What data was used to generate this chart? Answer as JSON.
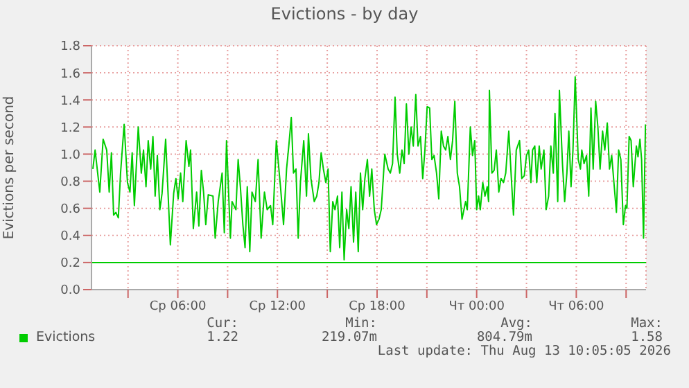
{
  "chart_data": {
    "type": "line",
    "title": "Evictions - by day",
    "ylabel": "Evictions per second",
    "xlim": [
      "2026-08-12T00:48",
      "2026-08-13T10:12"
    ],
    "xticks": [
      {
        "value": "2026-08-12T03:00",
        "label": null
      },
      {
        "value": "2026-08-12T06:00",
        "label": "Ср 06:00"
      },
      {
        "value": "2026-08-12T09:00",
        "label": null
      },
      {
        "value": "2026-08-12T12:00",
        "label": "Ср 12:00"
      },
      {
        "value": "2026-08-12T15:00",
        "label": null
      },
      {
        "value": "2026-08-12T18:00",
        "label": "Ср 18:00"
      },
      {
        "value": "2026-08-12T21:00",
        "label": null
      },
      {
        "value": "2026-08-13T00:00",
        "label": "Чт 00:00"
      },
      {
        "value": "2026-08-13T03:00",
        "label": null
      },
      {
        "value": "2026-08-13T06:00",
        "label": "Чт 06:00"
      },
      {
        "value": "2026-08-13T09:00",
        "label": null
      }
    ],
    "ylim": [
      0,
      1.8
    ],
    "yticks": [
      {
        "value": 0,
        "label": "0.0"
      },
      {
        "value": 0.2,
        "label": "0.2"
      },
      {
        "value": 0.4,
        "label": "0.4"
      },
      {
        "value": 0.6,
        "label": "0.6"
      },
      {
        "value": 0.8,
        "label": "0.8"
      },
      {
        "value": 1,
        "label": "1.0"
      },
      {
        "value": 1.2,
        "label": "1.2"
      },
      {
        "value": 1.4,
        "label": "1.4"
      },
      {
        "value": 1.6,
        "label": "1.6"
      },
      {
        "value": 1.8,
        "label": "1.8"
      }
    ],
    "grid": true,
    "legend": "bottom",
    "marker": "none",
    "line_style": "solid",
    "ref_lines": [
      {
        "axis": "y",
        "value": 0.2,
        "color": "#00cc00"
      }
    ],
    "annotations": [
      "Cur:",
      "Min:",
      "Avg:",
      "Max:",
      "1.22",
      "219.07m",
      "804.79m",
      "1.58",
      "Last update: Thu Aug 13 10:05:05 2026"
    ],
    "series": [
      {
        "name": "Evictions",
        "color": "#00cc00",
        "x": [
          "2026-08-12T00:53",
          "2026-08-12T01:01",
          "2026-08-12T01:18",
          "2026-08-12T01:30",
          "2026-08-12T01:43",
          "2026-08-12T01:52",
          "2026-08-12T02:00",
          "2026-08-12T02:08",
          "2026-08-12T02:16",
          "2026-08-12T02:25",
          "2026-08-12T02:33",
          "2026-08-12T02:46",
          "2026-08-12T02:58",
          "2026-08-12T03:07",
          "2026-08-12T03:15",
          "2026-08-12T03:23",
          "2026-08-12T03:37",
          "2026-08-12T03:48",
          "2026-08-12T03:56",
          "2026-08-12T04:05",
          "2026-08-12T04:13",
          "2026-08-12T04:22",
          "2026-08-12T04:30",
          "2026-08-12T04:38",
          "2026-08-12T04:46",
          "2026-08-12T04:55",
          "2026-08-12T05:03",
          "2026-08-12T05:16",
          "2026-08-12T05:33",
          "2026-08-12T05:45",
          "2026-08-12T05:53",
          "2026-08-12T06:01",
          "2026-08-12T06:10",
          "2026-08-12T06:18",
          "2026-08-12T06:30",
          "2026-08-12T06:40",
          "2026-08-12T06:46",
          "2026-08-12T06:56",
          "2026-08-12T07:08",
          "2026-08-12T07:16",
          "2026-08-12T07:25",
          "2026-08-12T07:33",
          "2026-08-12T07:41",
          "2026-08-12T07:50",
          "2026-08-12T08:07",
          "2026-08-12T08:15",
          "2026-08-12T08:26",
          "2026-08-12T08:40",
          "2026-08-12T08:48",
          "2026-08-12T08:56",
          "2026-08-12T09:10",
          "2026-08-12T09:16",
          "2026-08-12T09:30",
          "2026-08-12T09:38",
          "2026-08-12T09:46",
          "2026-08-12T09:55",
          "2026-08-12T10:03",
          "2026-08-12T10:11",
          "2026-08-12T10:20",
          "2026-08-12T10:28",
          "2026-08-12T10:40",
          "2026-08-12T10:50",
          "2026-08-12T11:01",
          "2026-08-12T11:13",
          "2026-08-12T11:23",
          "2026-08-12T11:35",
          "2026-08-12T11:43",
          "2026-08-12T11:56",
          "2026-08-12T12:11",
          "2026-08-12T12:22",
          "2026-08-12T12:33",
          "2026-08-12T12:41",
          "2026-08-12T12:50",
          "2026-08-12T12:58",
          "2026-08-12T13:07",
          "2026-08-12T13:15",
          "2026-08-12T13:23",
          "2026-08-12T13:35",
          "2026-08-12T13:45",
          "2026-08-12T13:52",
          "2026-08-12T14:01",
          "2026-08-12T14:13",
          "2026-08-12T14:22",
          "2026-08-12T14:30",
          "2026-08-12T14:38",
          "2026-08-12T14:46",
          "2026-08-12T14:55",
          "2026-08-12T15:03",
          "2026-08-12T15:11",
          "2026-08-12T15:20",
          "2026-08-12T15:28",
          "2026-08-12T15:37",
          "2026-08-12T15:45",
          "2026-08-12T15:53",
          "2026-08-12T16:01",
          "2026-08-12T16:10",
          "2026-08-12T16:18",
          "2026-08-12T16:26",
          "2026-08-12T16:35",
          "2026-08-12T16:43",
          "2026-08-12T16:52",
          "2026-08-12T17:00",
          "2026-08-12T17:08",
          "2026-08-12T17:16",
          "2026-08-12T17:25",
          "2026-08-12T17:33",
          "2026-08-12T17:41",
          "2026-08-12T17:50",
          "2026-08-12T17:58",
          "2026-08-12T18:07",
          "2026-08-12T18:15",
          "2026-08-12T18:28",
          "2026-08-12T18:40",
          "2026-08-12T18:48",
          "2026-08-12T18:56",
          "2026-08-12T19:05",
          "2026-08-12T19:13",
          "2026-08-12T19:22",
          "2026-08-12T19:30",
          "2026-08-12T19:38",
          "2026-08-12T19:46",
          "2026-08-12T19:55",
          "2026-08-12T20:03",
          "2026-08-12T20:11",
          "2026-08-12T20:20",
          "2026-08-12T20:28",
          "2026-08-12T20:37",
          "2026-08-12T20:45",
          "2026-08-12T20:53",
          "2026-08-12T21:01",
          "2026-08-12T21:10",
          "2026-08-12T21:18",
          "2026-08-12T21:26",
          "2026-08-12T21:35",
          "2026-08-12T21:43",
          "2026-08-12T21:52",
          "2026-08-12T22:00",
          "2026-08-12T22:08",
          "2026-08-12T22:16",
          "2026-08-12T22:25",
          "2026-08-12T22:33",
          "2026-08-12T22:41",
          "2026-08-12T22:50",
          "2026-08-12T22:58",
          "2026-08-12T23:07",
          "2026-08-12T23:20",
          "2026-08-12T23:26",
          "2026-08-12T23:37",
          "2026-08-12T23:45",
          "2026-08-12T23:53",
          "2026-08-13T00:00",
          "2026-08-13T00:07",
          "2026-08-13T00:13",
          "2026-08-13T00:22",
          "2026-08-13T00:30",
          "2026-08-13T00:38",
          "2026-08-13T00:43",
          "2026-08-13T00:46",
          "2026-08-13T00:55",
          "2026-08-13T01:03",
          "2026-08-13T01:11",
          "2026-08-13T01:20",
          "2026-08-13T01:28",
          "2026-08-13T01:37",
          "2026-08-13T01:45",
          "2026-08-13T01:56",
          "2026-08-13T02:07",
          "2026-08-13T02:13",
          "2026-08-13T02:23",
          "2026-08-13T02:35",
          "2026-08-13T02:43",
          "2026-08-13T02:52",
          "2026-08-13T03:00",
          "2026-08-13T03:08",
          "2026-08-13T03:16",
          "2026-08-13T03:22",
          "2026-08-13T03:30",
          "2026-08-13T03:37",
          "2026-08-13T03:46",
          "2026-08-13T03:53",
          "2026-08-13T04:03",
          "2026-08-13T04:11",
          "2026-08-13T04:20",
          "2026-08-13T04:28",
          "2026-08-13T04:37",
          "2026-08-13T04:43",
          "2026-08-13T04:53",
          "2026-08-13T04:59",
          "2026-08-13T05:10",
          "2026-08-13T05:18",
          "2026-08-13T05:26",
          "2026-08-13T05:33",
          "2026-08-13T05:41",
          "2026-08-13T05:48",
          "2026-08-13T05:56",
          "2026-08-13T06:07",
          "2026-08-13T06:15",
          "2026-08-13T06:20",
          "2026-08-13T06:28",
          "2026-08-13T06:37",
          "2026-08-13T06:45",
          "2026-08-13T06:53",
          "2026-08-13T07:01",
          "2026-08-13T07:10",
          "2026-08-13T07:18",
          "2026-08-13T07:26",
          "2026-08-13T07:35",
          "2026-08-13T07:43",
          "2026-08-13T07:52",
          "2026-08-13T08:00",
          "2026-08-13T08:08",
          "2026-08-13T08:16",
          "2026-08-13T08:25",
          "2026-08-13T08:33",
          "2026-08-13T08:41",
          "2026-08-13T08:50",
          "2026-08-13T08:58",
          "2026-08-13T09:03",
          "2026-08-13T09:11",
          "2026-08-13T09:18",
          "2026-08-13T09:26",
          "2026-08-13T09:37",
          "2026-08-13T09:43",
          "2026-08-13T09:50",
          "2026-08-13T09:56",
          "2026-08-13T10:03",
          "2026-08-13T10:10"
        ],
        "values": [
          0.89,
          1.03,
          0.72,
          1.11,
          1.03,
          0.72,
          1.01,
          0.55,
          0.57,
          0.53,
          0.86,
          1.22,
          0.79,
          0.72,
          1.01,
          0.62,
          1.2,
          0.86,
          1.03,
          0.76,
          1.1,
          0.89,
          1.13,
          0.69,
          0.99,
          0.59,
          0.71,
          1.11,
          0.33,
          0.71,
          0.82,
          0.67,
          0.86,
          0.65,
          1.1,
          0.91,
          1.03,
          0.45,
          0.72,
          0.47,
          0.88,
          0.72,
          0.48,
          0.7,
          0.69,
          0.38,
          0.65,
          0.86,
          0.42,
          1.1,
          0.38,
          0.65,
          0.59,
          0.96,
          0.76,
          0.48,
          0.31,
          0.76,
          0.28,
          0.72,
          0.65,
          0.96,
          0.38,
          0.72,
          0.59,
          0.62,
          0.48,
          1.1,
          0.76,
          0.48,
          0.89,
          1.06,
          1.27,
          0.86,
          0.89,
          0.38,
          0.79,
          1.1,
          0.69,
          1.15,
          0.82,
          0.65,
          0.69,
          0.79,
          1.01,
          0.89,
          0.79,
          0.89,
          0.28,
          0.65,
          0.59,
          0.69,
          0.31,
          0.72,
          0.22,
          0.59,
          0.45,
          0.76,
          0.35,
          0.72,
          0.28,
          0.86,
          0.59,
          0.82,
          0.96,
          0.69,
          0.89,
          0.59,
          0.48,
          0.52,
          0.59,
          1.0,
          0.89,
          0.86,
          0.93,
          1.42,
          1.0,
          0.86,
          1.03,
          0.93,
          1.37,
          1.0,
          1.2,
          1.06,
          1.44,
          1.06,
          1.13,
          0.82,
          1.03,
          1.35,
          1.34,
          0.96,
          0.99,
          0.86,
          0.67,
          1.17,
          1.06,
          1.03,
          1.13,
          0.96,
          1.1,
          1.39,
          0.86,
          0.76,
          0.52,
          0.65,
          0.59,
          1.2,
          0.99,
          1.1,
          0.59,
          0.69,
          0.59,
          0.79,
          0.69,
          0.76,
          0.65,
          1.47,
          0.86,
          0.88,
          1.03,
          0.72,
          0.82,
          0.79,
          0.86,
          1.17,
          0.76,
          0.55,
          1.03,
          1.1,
          0.82,
          0.84,
          0.99,
          1.03,
          0.79,
          1.03,
          1.06,
          0.79,
          1.06,
          0.89,
          1.03,
          0.59,
          0.69,
          1.06,
          0.86,
          1.3,
          0.65,
          1.47,
          0.93,
          0.65,
          0.86,
          1.17,
          0.76,
          1.03,
          1.57,
          0.96,
          0.89,
          1.03,
          0.93,
          0.99,
          0.69,
          1.34,
          0.89,
          1.39,
          1.2,
          0.89,
          1.17,
          1.03,
          1.23,
          0.89,
          0.99,
          0.79,
          0.57,
          1.03,
          0.96,
          0.48,
          0.62,
          0.6,
          1.13,
          1.1,
          0.76,
          1.06,
          0.98,
          1.11,
          0.96,
          0.38,
          1.22
        ]
      }
    ]
  }
}
